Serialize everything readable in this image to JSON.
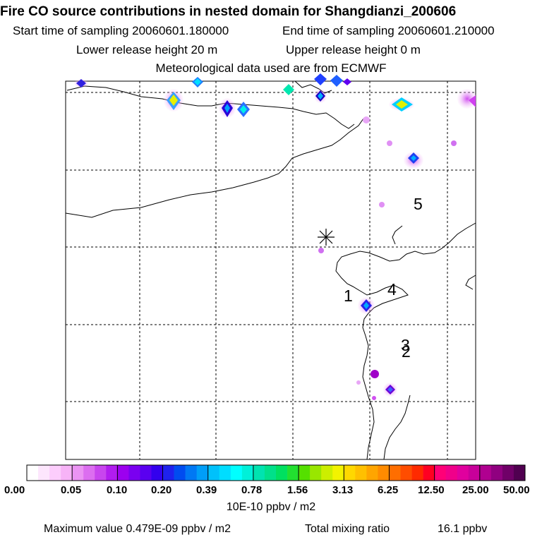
{
  "header": {
    "title": "Fire CO source contributions in nested domain for Shangdianzi_200606",
    "start_label": "Start time of sampling 20060601.180000",
    "end_label": "End time of sampling 20060601.210000",
    "lower_label": "Lower release height   20 m",
    "upper_label": "Upper release height    0 m",
    "met_label": "Meteorological data used are from ECMWF"
  },
  "map": {
    "station_marker": "asterisk",
    "region_labels": [
      "5",
      "4",
      "1",
      "3",
      "2"
    ]
  },
  "colorbar": {
    "colors": [
      "#ffffff",
      "#fde6fd",
      "#fccdfc",
      "#f7b3f7",
      "#eb94f3",
      "#dc6ef0",
      "#c845ee",
      "#b11cef",
      "#9c00ef",
      "#7a00f0",
      "#5a00f0",
      "#3300ee",
      "#1f22ee",
      "#004cf0",
      "#0078f4",
      "#009ef8",
      "#00c1fb",
      "#00ddff",
      "#00ffff",
      "#00f0d9",
      "#00e3b0",
      "#00e08a",
      "#00e060",
      "#22e030",
      "#55e000",
      "#99e600",
      "#ccee00",
      "#f3f300",
      "#ffd800",
      "#ffc000",
      "#ffa500",
      "#ff8b00",
      "#ff6e00",
      "#ff4d00",
      "#ff2a00",
      "#ff0022",
      "#ff0077",
      "#f0008a",
      "#e0009e",
      "#c8009a",
      "#b00090",
      "#900080",
      "#700068",
      "#500050"
    ],
    "tick_labels": [
      "0.00",
      "0.05",
      "0.10",
      "0.20",
      "0.39",
      "0.78",
      "1.56",
      "3.13",
      "6.25",
      "12.50",
      "25.00",
      "50.00"
    ],
    "units": "10E-10 ppbv / m2"
  },
  "footer": {
    "max_label": "Maximum value  0.479E-09 ppbv / m2",
    "total_label": "Total mixing ratio",
    "total_value": "16.1 ppbv"
  }
}
